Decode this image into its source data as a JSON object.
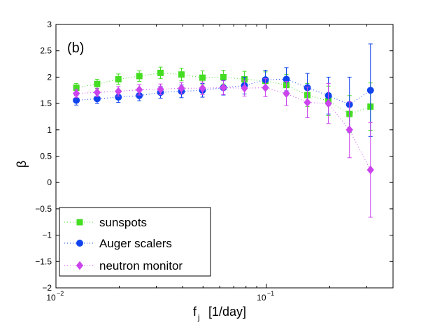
{
  "chart_data": {
    "type": "scatter",
    "panel_label": "(b)",
    "xlabel": "f",
    "xlabel_sub": "j",
    "xlabel_unit": "[1/day]",
    "ylabel": "β",
    "xscale": "log",
    "xlim": [
      0.01,
      0.4
    ],
    "ylim": [
      -2,
      3
    ],
    "y_ticks": [
      -2,
      -1.5,
      -1,
      -0.5,
      0,
      0.5,
      1,
      1.5,
      2,
      2.5,
      3
    ],
    "y_tick_labels": [
      "−2",
      "−1.5",
      "−1",
      "−0.5",
      "0",
      "0.5",
      "1",
      "1.5",
      "2",
      "2.5",
      "3"
    ],
    "x_ticks": [
      {
        "value": 0.01,
        "base": "10",
        "exp": "−2"
      },
      {
        "value": 0.1,
        "base": "10",
        "exp": "−1"
      }
    ],
    "legend_position": "bottom-left",
    "series": [
      {
        "name": "sunspots",
        "color": "#44dd22",
        "marker": "square",
        "x": [
          0.0125,
          0.0157,
          0.0198,
          0.0249,
          0.0314,
          0.0395,
          0.0497,
          0.0625,
          0.0787,
          0.099,
          0.1245,
          0.1567,
          0.1972,
          0.2483,
          0.3125
        ],
        "y": [
          1.8,
          1.87,
          1.96,
          2.02,
          2.08,
          2.05,
          1.99,
          2.0,
          1.96,
          1.93,
          1.85,
          1.66,
          1.55,
          1.3,
          1.44
        ],
        "err": [
          0.08,
          0.09,
          0.1,
          0.1,
          0.11,
          0.12,
          0.13,
          0.13,
          0.15,
          0.17,
          0.2,
          0.22,
          0.28,
          0.35,
          0.45
        ]
      },
      {
        "name": "Auger scalers",
        "color": "#1144ee",
        "marker": "circle",
        "x": [
          0.0125,
          0.0157,
          0.0198,
          0.0249,
          0.0314,
          0.0395,
          0.0497,
          0.0625,
          0.0787,
          0.099,
          0.1245,
          0.1567,
          0.1972,
          0.2483,
          0.3125
        ],
        "y": [
          1.56,
          1.59,
          1.62,
          1.65,
          1.71,
          1.73,
          1.75,
          1.8,
          1.84,
          1.95,
          1.96,
          1.8,
          1.65,
          1.48,
          1.75
        ],
        "err": [
          0.09,
          0.09,
          0.1,
          0.1,
          0.11,
          0.12,
          0.13,
          0.14,
          0.16,
          0.18,
          0.22,
          0.27,
          0.35,
          0.52,
          0.88
        ]
      },
      {
        "name": "neutron monitor",
        "color": "#cc44ee",
        "marker": "diamond",
        "x": [
          0.0125,
          0.0157,
          0.0198,
          0.0249,
          0.0314,
          0.0395,
          0.0497,
          0.0625,
          0.0787,
          0.099,
          0.1245,
          0.1567,
          0.1972,
          0.2483,
          0.3125
        ],
        "y": [
          1.69,
          1.71,
          1.73,
          1.76,
          1.77,
          1.79,
          1.79,
          1.8,
          1.79,
          1.8,
          1.69,
          1.52,
          1.5,
          1.0,
          0.24
        ],
        "err": [
          0.08,
          0.08,
          0.09,
          0.1,
          0.1,
          0.11,
          0.12,
          0.13,
          0.15,
          0.17,
          0.23,
          0.29,
          0.38,
          0.53,
          0.9
        ]
      }
    ]
  }
}
